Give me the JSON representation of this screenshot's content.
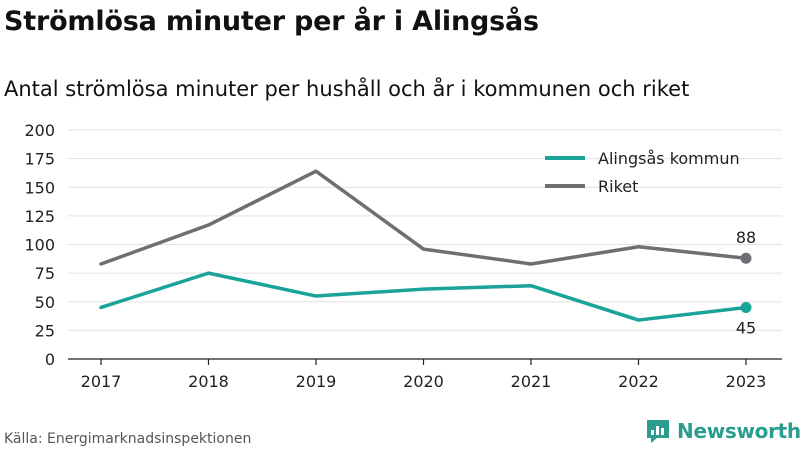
{
  "title": "Strömlösa minuter per år i Alingsås",
  "subtitle": "Antal strömlösa minuter per hushåll och år i kommunen och riket",
  "source": "Källa: Energimarknadsinspektionen",
  "brand": "Newsworthy",
  "colors": {
    "alingsas": "#1aa398",
    "riket": "#6e6e73",
    "grid": "#e2e2e2",
    "axis": "#222222",
    "brand": "#2a9d8f"
  },
  "chart_data": {
    "type": "line",
    "categories": [
      "2017",
      "2018",
      "2019",
      "2020",
      "2021",
      "2022",
      "2023"
    ],
    "ylim": [
      0,
      200
    ],
    "yticks": [
      0,
      25,
      50,
      75,
      100,
      125,
      150,
      175,
      200
    ],
    "series": [
      {
        "name": "Alingsås kommun",
        "values": [
          45,
          75,
          55,
          61,
          64,
          34,
          45
        ],
        "end_label": "45"
      },
      {
        "name": "Riket",
        "values": [
          83,
          117,
          164,
          96,
          83,
          98,
          88
        ],
        "end_label": "88"
      }
    ],
    "legend": "top-right",
    "grid": true
  }
}
